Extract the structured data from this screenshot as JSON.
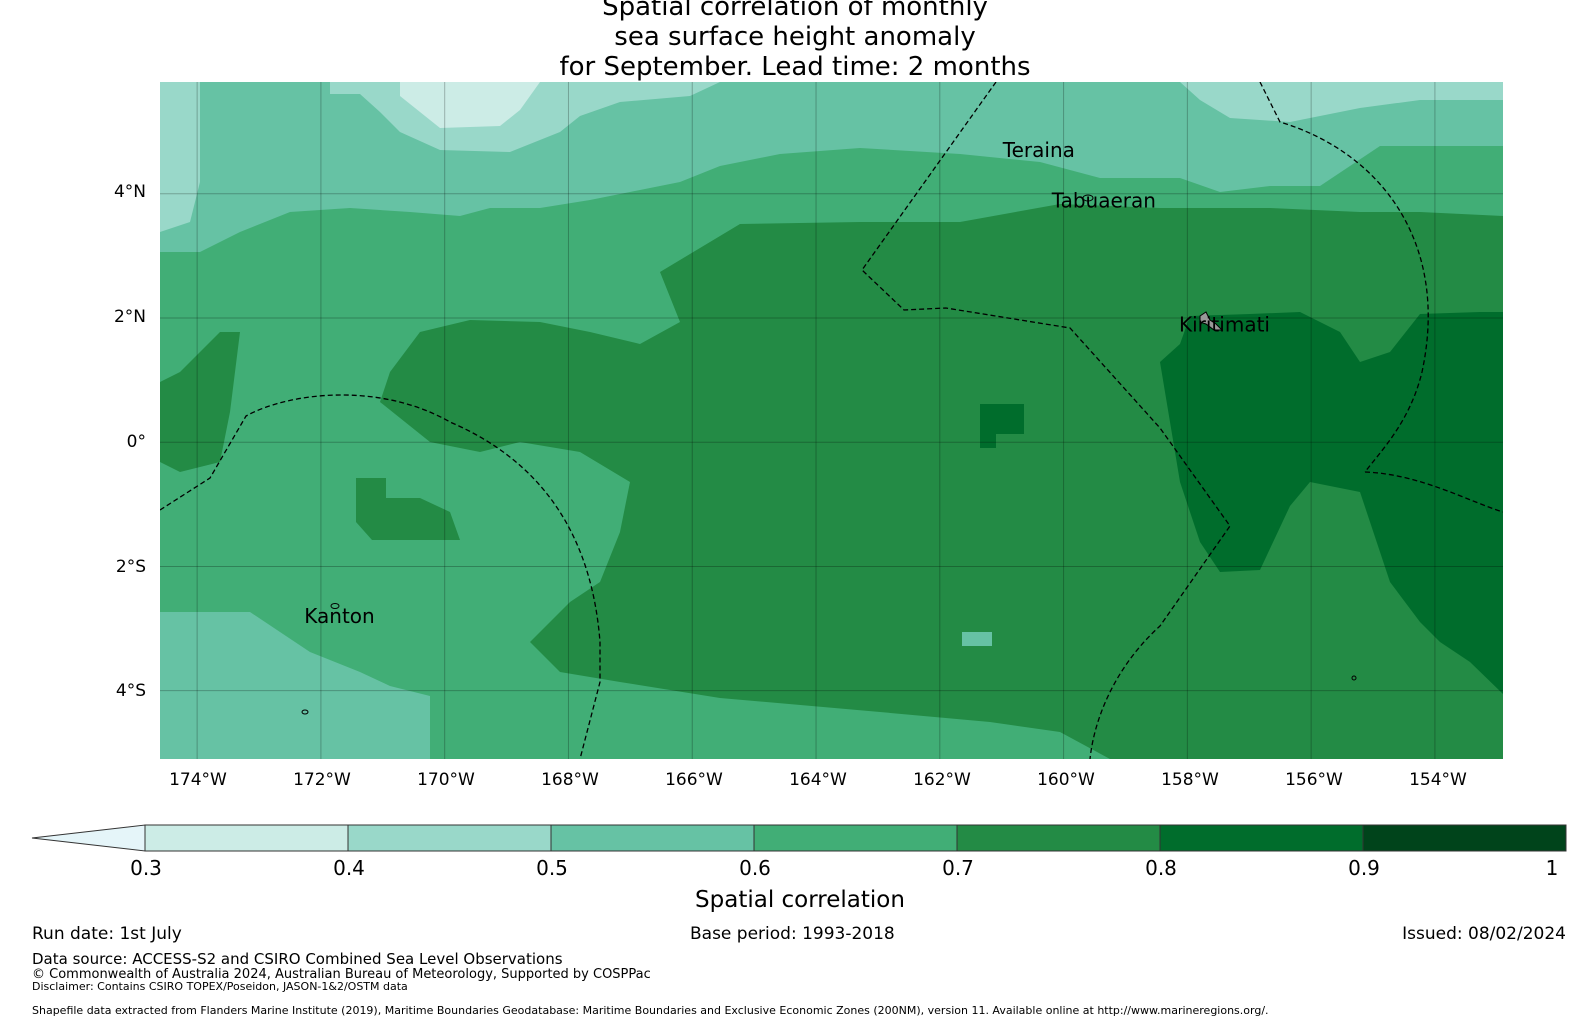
{
  "title": {
    "line1": "Spatial correlation of monthly",
    "line2": "sea surface height anomaly",
    "line3": "for September. Lead time: 2 months"
  },
  "map": {
    "lon_range": [
      -174.6,
      -152.9
    ],
    "lat_range": [
      -5.1,
      5.8
    ],
    "lat_ticks": [
      "4°N",
      "2°N",
      "0°",
      "2°S",
      "4°S"
    ],
    "lat_tick_values": [
      4,
      2,
      0,
      -2,
      -4
    ],
    "lon_ticks": [
      "174°W",
      "172°W",
      "170°W",
      "168°W",
      "166°W",
      "164°W",
      "162°W",
      "160°W",
      "158°W",
      "156°W",
      "154°W"
    ],
    "lon_tick_values": [
      -174,
      -172,
      -170,
      -168,
      -166,
      -164,
      -162,
      -160,
      -158,
      -156,
      -154
    ],
    "islands": [
      {
        "name": "Teraina",
        "lon": -160.4,
        "lat": 4.68
      },
      {
        "name": "Tabuaeran",
        "lon": -159.35,
        "lat": 3.87
      },
      {
        "name": "Kiritimati",
        "lon": -157.4,
        "lat": 1.87
      },
      {
        "name": "Kanton",
        "lon": -171.7,
        "lat": -2.82
      }
    ],
    "grid_lines": true,
    "eez_boundaries": "dashed"
  },
  "colorbar": {
    "ticks": [
      "0.3",
      "0.4",
      "0.5",
      "0.6",
      "0.7",
      "0.8",
      "0.9",
      "1"
    ],
    "colors": [
      "#ccece6",
      "#99d8c9",
      "#66c2a4",
      "#41ae76",
      "#238b45",
      "#006d2c",
      "#00441b"
    ],
    "extend_color": "#e5f5f9",
    "label": "Spatial correlation"
  },
  "footer": {
    "run_date": "Run date: 1st July",
    "base_period": "Base period: 1993-2018",
    "issued": "Issued: 08/02/2024",
    "data_source": "Data source: ACCESS-S2 and CSIRO Combined Sea Level Observations",
    "copyright": "© Commonwealth of Australia 2024, Australian Bureau of Meteorology, Supported by COSPPac",
    "disclaimer": "Disclaimer: Contains CSIRO TOPEX/Poseidon, JASON-1&2/OSTM data",
    "shapefile": "Shapefile data extracted from Flanders Marine Institute (2019), Maritime Boundaries Geodatabase: Maritime Boundaries and Exclusive Economic Zones (200NM), version 11. Available online at http://www.marineregions.org/."
  }
}
